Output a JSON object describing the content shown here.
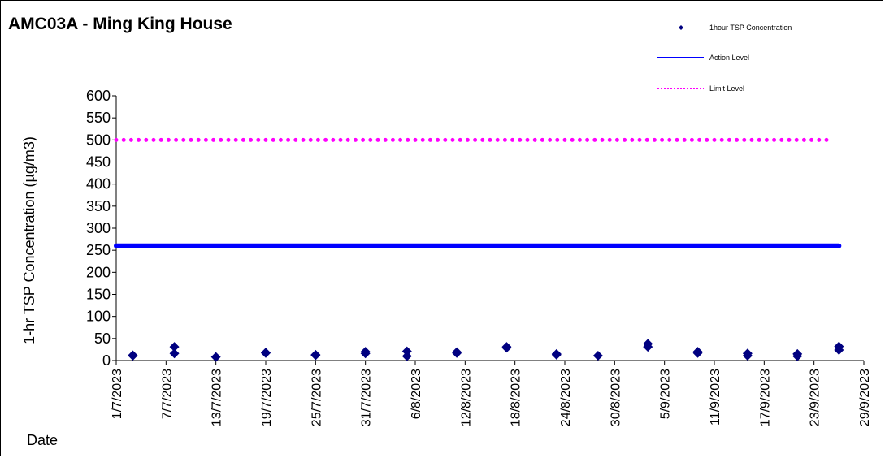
{
  "chart_data": {
    "type": "scatter",
    "title": "AMC03A - Ming King House",
    "xlabel": "Date",
    "ylabel": "1-hr TSP Concentration (µg/m3)",
    "ylim": [
      0,
      600
    ],
    "y_ticks": [
      0,
      50,
      100,
      150,
      200,
      250,
      300,
      350,
      400,
      450,
      500,
      550,
      600
    ],
    "x_range": [
      "2023-07-01",
      "2023-09-29"
    ],
    "x_tick_labels": [
      "1/7/2023",
      "7/7/2023",
      "13/7/2023",
      "19/7/2023",
      "25/7/2023",
      "31/7/2023",
      "6/8/2023",
      "12/8/2023",
      "18/8/2023",
      "24/8/2023",
      "30/8/2023",
      "5/9/2023",
      "11/9/2023",
      "17/9/2023",
      "23/9/2023",
      "29/9/2023"
    ],
    "grid": false,
    "legend_position": "top-right",
    "series": [
      {
        "name": "1hour TSP Concentration",
        "kind": "scatter",
        "color": "#000080",
        "marker": "diamond",
        "points": [
          {
            "x": "2023-07-03",
            "y": 11
          },
          {
            "x": "2023-07-03",
            "y": 12
          },
          {
            "x": "2023-07-08",
            "y": 16
          },
          {
            "x": "2023-07-08",
            "y": 31
          },
          {
            "x": "2023-07-13",
            "y": 8
          },
          {
            "x": "2023-07-19",
            "y": 17
          },
          {
            "x": "2023-07-19",
            "y": 18
          },
          {
            "x": "2023-07-25",
            "y": 12
          },
          {
            "x": "2023-07-25",
            "y": 13
          },
          {
            "x": "2023-07-31",
            "y": 16
          },
          {
            "x": "2023-07-31",
            "y": 20
          },
          {
            "x": "2023-08-05",
            "y": 10
          },
          {
            "x": "2023-08-05",
            "y": 21
          },
          {
            "x": "2023-08-11",
            "y": 17
          },
          {
            "x": "2023-08-11",
            "y": 19
          },
          {
            "x": "2023-08-17",
            "y": 29
          },
          {
            "x": "2023-08-17",
            "y": 31
          },
          {
            "x": "2023-08-23",
            "y": 13
          },
          {
            "x": "2023-08-23",
            "y": 15
          },
          {
            "x": "2023-08-28",
            "y": 11
          },
          {
            "x": "2023-09-03",
            "y": 31
          },
          {
            "x": "2023-09-03",
            "y": 38
          },
          {
            "x": "2023-09-09",
            "y": 17
          },
          {
            "x": "2023-09-09",
            "y": 20
          },
          {
            "x": "2023-09-15",
            "y": 11
          },
          {
            "x": "2023-09-15",
            "y": 16
          },
          {
            "x": "2023-09-21",
            "y": 10
          },
          {
            "x": "2023-09-21",
            "y": 15
          },
          {
            "x": "2023-09-26",
            "y": 24
          },
          {
            "x": "2023-09-26",
            "y": 32
          }
        ]
      },
      {
        "name": "Action Level",
        "kind": "line",
        "color": "#0000ff",
        "style": "solid",
        "x": [
          "2023-07-01",
          "2023-09-26"
        ],
        "y": [
          260,
          260
        ]
      },
      {
        "name": "Limit Level",
        "kind": "line",
        "color": "#ff00ff",
        "style": "dotted",
        "x": [
          "2023-07-01",
          "2023-09-25"
        ],
        "y": [
          500,
          500
        ]
      }
    ]
  }
}
